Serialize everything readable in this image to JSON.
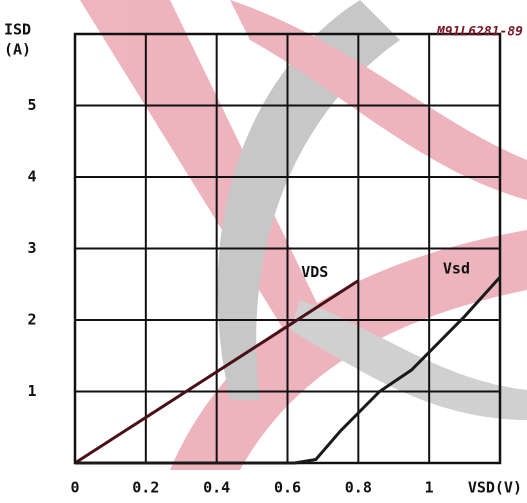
{
  "chart_data": {
    "type": "line",
    "code": "M91L6281-89",
    "y_label": [
      "ISD",
      "(A)"
    ],
    "x_label": "VSD(V)",
    "xlim": [
      0,
      1.2
    ],
    "ylim": [
      0,
      6
    ],
    "xticks": [
      0,
      0.2,
      0.4,
      0.6,
      0.8,
      1
    ],
    "yticks": [
      1,
      2,
      3,
      4,
      5
    ],
    "grid": true,
    "series": [
      {
        "name": "VDS",
        "color": "#4a1018",
        "x": [
          0,
          0.8
        ],
        "values": [
          0,
          2.55
        ]
      },
      {
        "name": "Vsd",
        "color": "#1a1a1a",
        "x": [
          0,
          0.62,
          0.68,
          0.75,
          0.86,
          0.95,
          1.0,
          1.1,
          1.2
        ],
        "values": [
          0,
          0,
          0.05,
          0.45,
          1.0,
          1.3,
          1.55,
          2.05,
          2.6
        ]
      }
    ]
  }
}
